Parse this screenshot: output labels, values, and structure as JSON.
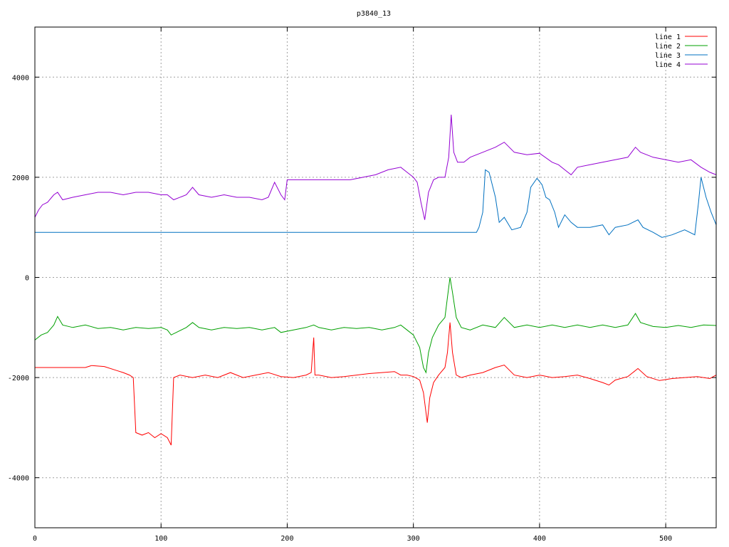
{
  "chart_data": {
    "type": "line",
    "title": "p3840_13",
    "xlabel": "",
    "ylabel": "",
    "xlim": [
      0,
      540
    ],
    "ylim": [
      -5000,
      5000
    ],
    "xticks": [
      0,
      100,
      200,
      300,
      400,
      500
    ],
    "yticks": [
      -4000,
      -2000,
      0,
      2000,
      4000
    ],
    "grid": true,
    "legend_position": "top-right",
    "series": [
      {
        "name": "line 1",
        "color": "#ff0000",
        "points": [
          [
            0,
            -1800
          ],
          [
            40,
            -1800
          ],
          [
            45,
            -1760
          ],
          [
            55,
            -1780
          ],
          [
            65,
            -1860
          ],
          [
            70,
            -1900
          ],
          [
            75,
            -1950
          ],
          [
            78,
            -2000
          ],
          [
            80,
            -3100
          ],
          [
            85,
            -3150
          ],
          [
            90,
            -3100
          ],
          [
            95,
            -3200
          ],
          [
            100,
            -3120
          ],
          [
            105,
            -3200
          ],
          [
            108,
            -3350
          ],
          [
            110,
            -2000
          ],
          [
            115,
            -1950
          ],
          [
            125,
            -2000
          ],
          [
            135,
            -1950
          ],
          [
            145,
            -2000
          ],
          [
            155,
            -1900
          ],
          [
            165,
            -2000
          ],
          [
            175,
            -1950
          ],
          [
            185,
            -1900
          ],
          [
            195,
            -1980
          ],
          [
            205,
            -2000
          ],
          [
            215,
            -1950
          ],
          [
            219,
            -1900
          ],
          [
            221,
            -1200
          ],
          [
            222,
            -1950
          ],
          [
            225,
            -1950
          ],
          [
            235,
            -2000
          ],
          [
            245,
            -1980
          ],
          [
            255,
            -1950
          ],
          [
            265,
            -1920
          ],
          [
            275,
            -1900
          ],
          [
            285,
            -1880
          ],
          [
            290,
            -1950
          ],
          [
            295,
            -1950
          ],
          [
            300,
            -1980
          ],
          [
            305,
            -2050
          ],
          [
            308,
            -2300
          ],
          [
            310,
            -2700
          ],
          [
            311,
            -2900
          ],
          [
            313,
            -2400
          ],
          [
            316,
            -2100
          ],
          [
            320,
            -1950
          ],
          [
            325,
            -1800
          ],
          [
            327,
            -1500
          ],
          [
            329,
            -900
          ],
          [
            331,
            -1500
          ],
          [
            334,
            -1950
          ],
          [
            338,
            -2000
          ],
          [
            345,
            -1950
          ],
          [
            355,
            -1900
          ],
          [
            365,
            -1800
          ],
          [
            372,
            -1750
          ],
          [
            380,
            -1950
          ],
          [
            390,
            -2000
          ],
          [
            400,
            -1950
          ],
          [
            410,
            -2000
          ],
          [
            420,
            -1980
          ],
          [
            430,
            -1950
          ],
          [
            440,
            -2020
          ],
          [
            450,
            -2100
          ],
          [
            455,
            -2150
          ],
          [
            460,
            -2050
          ],
          [
            470,
            -1980
          ],
          [
            478,
            -1820
          ],
          [
            485,
            -1980
          ],
          [
            495,
            -2060
          ],
          [
            505,
            -2020
          ],
          [
            515,
            -2000
          ],
          [
            525,
            -1980
          ],
          [
            535,
            -2020
          ],
          [
            540,
            -1950
          ]
        ]
      },
      {
        "name": "line 2",
        "color": "#00a000",
        "points": [
          [
            0,
            -1250
          ],
          [
            5,
            -1150
          ],
          [
            10,
            -1100
          ],
          [
            15,
            -950
          ],
          [
            18,
            -780
          ],
          [
            22,
            -950
          ],
          [
            30,
            -1000
          ],
          [
            40,
            -950
          ],
          [
            50,
            -1020
          ],
          [
            60,
            -1000
          ],
          [
            70,
            -1050
          ],
          [
            80,
            -1000
          ],
          [
            90,
            -1020
          ],
          [
            100,
            -1000
          ],
          [
            105,
            -1050
          ],
          [
            108,
            -1150
          ],
          [
            112,
            -1100
          ],
          [
            120,
            -1000
          ],
          [
            125,
            -900
          ],
          [
            130,
            -1000
          ],
          [
            140,
            -1050
          ],
          [
            150,
            -1000
          ],
          [
            160,
            -1020
          ],
          [
            170,
            -1000
          ],
          [
            180,
            -1050
          ],
          [
            190,
            -1000
          ],
          [
            195,
            -1100
          ],
          [
            205,
            -1050
          ],
          [
            215,
            -1000
          ],
          [
            221,
            -950
          ],
          [
            225,
            -1000
          ],
          [
            235,
            -1050
          ],
          [
            245,
            -1000
          ],
          [
            255,
            -1020
          ],
          [
            265,
            -1000
          ],
          [
            275,
            -1050
          ],
          [
            285,
            -1000
          ],
          [
            290,
            -950
          ],
          [
            295,
            -1050
          ],
          [
            300,
            -1150
          ],
          [
            305,
            -1400
          ],
          [
            308,
            -1800
          ],
          [
            310,
            -1900
          ],
          [
            312,
            -1500
          ],
          [
            315,
            -1200
          ],
          [
            320,
            -950
          ],
          [
            325,
            -800
          ],
          [
            327,
            -400
          ],
          [
            329,
            0
          ],
          [
            331,
            -300
          ],
          [
            334,
            -800
          ],
          [
            338,
            -1000
          ],
          [
            345,
            -1050
          ],
          [
            355,
            -950
          ],
          [
            365,
            -1000
          ],
          [
            372,
            -800
          ],
          [
            380,
            -1000
          ],
          [
            390,
            -950
          ],
          [
            400,
            -1000
          ],
          [
            410,
            -950
          ],
          [
            420,
            -1000
          ],
          [
            430,
            -950
          ],
          [
            440,
            -1000
          ],
          [
            450,
            -950
          ],
          [
            460,
            -1000
          ],
          [
            470,
            -950
          ],
          [
            476,
            -720
          ],
          [
            480,
            -900
          ],
          [
            490,
            -980
          ],
          [
            500,
            -1000
          ],
          [
            510,
            -960
          ],
          [
            520,
            -1000
          ],
          [
            530,
            -950
          ],
          [
            540,
            -960
          ]
        ]
      },
      {
        "name": "line 3",
        "color": "#0070c0",
        "points": [
          [
            0,
            900
          ],
          [
            350,
            900
          ],
          [
            352,
            1000
          ],
          [
            355,
            1300
          ],
          [
            357,
            2150
          ],
          [
            360,
            2100
          ],
          [
            365,
            1600
          ],
          [
            368,
            1100
          ],
          [
            372,
            1200
          ],
          [
            378,
            950
          ],
          [
            385,
            1000
          ],
          [
            390,
            1300
          ],
          [
            393,
            1800
          ],
          [
            398,
            1980
          ],
          [
            402,
            1850
          ],
          [
            405,
            1600
          ],
          [
            408,
            1550
          ],
          [
            412,
            1300
          ],
          [
            415,
            1000
          ],
          [
            420,
            1250
          ],
          [
            425,
            1100
          ],
          [
            430,
            1000
          ],
          [
            440,
            1000
          ],
          [
            450,
            1050
          ],
          [
            455,
            850
          ],
          [
            460,
            1000
          ],
          [
            470,
            1050
          ],
          [
            478,
            1150
          ],
          [
            482,
            1000
          ],
          [
            490,
            900
          ],
          [
            497,
            800
          ],
          [
            505,
            850
          ],
          [
            515,
            950
          ],
          [
            523,
            850
          ],
          [
            526,
            1500
          ],
          [
            528,
            2000
          ],
          [
            532,
            1600
          ],
          [
            536,
            1300
          ],
          [
            540,
            1050
          ]
        ]
      },
      {
        "name": "line 4",
        "color": "#9400d3",
        "points": [
          [
            0,
            1200
          ],
          [
            3,
            1350
          ],
          [
            6,
            1450
          ],
          [
            10,
            1500
          ],
          [
            15,
            1650
          ],
          [
            18,
            1700
          ],
          [
            22,
            1550
          ],
          [
            30,
            1600
          ],
          [
            40,
            1650
          ],
          [
            50,
            1700
          ],
          [
            60,
            1700
          ],
          [
            70,
            1650
          ],
          [
            80,
            1700
          ],
          [
            90,
            1700
          ],
          [
            100,
            1650
          ],
          [
            105,
            1650
          ],
          [
            110,
            1550
          ],
          [
            120,
            1650
          ],
          [
            125,
            1800
          ],
          [
            130,
            1650
          ],
          [
            140,
            1600
          ],
          [
            150,
            1650
          ],
          [
            160,
            1600
          ],
          [
            170,
            1600
          ],
          [
            180,
            1550
          ],
          [
            185,
            1600
          ],
          [
            190,
            1900
          ],
          [
            195,
            1650
          ],
          [
            198,
            1550
          ],
          [
            200,
            1950
          ],
          [
            210,
            1950
          ],
          [
            220,
            1950
          ],
          [
            230,
            1950
          ],
          [
            240,
            1950
          ],
          [
            250,
            1950
          ],
          [
            260,
            2000
          ],
          [
            270,
            2050
          ],
          [
            280,
            2150
          ],
          [
            290,
            2200
          ],
          [
            295,
            2100
          ],
          [
            300,
            2000
          ],
          [
            303,
            1900
          ],
          [
            306,
            1500
          ],
          [
            309,
            1150
          ],
          [
            312,
            1700
          ],
          [
            316,
            1950
          ],
          [
            320,
            2000
          ],
          [
            325,
            2000
          ],
          [
            328,
            2400
          ],
          [
            330,
            3250
          ],
          [
            332,
            2500
          ],
          [
            335,
            2300
          ],
          [
            340,
            2300
          ],
          [
            345,
            2400
          ],
          [
            355,
            2500
          ],
          [
            365,
            2600
          ],
          [
            372,
            2700
          ],
          [
            380,
            2500
          ],
          [
            390,
            2450
          ],
          [
            400,
            2480
          ],
          [
            410,
            2300
          ],
          [
            415,
            2250
          ],
          [
            420,
            2150
          ],
          [
            425,
            2050
          ],
          [
            430,
            2200
          ],
          [
            440,
            2250
          ],
          [
            450,
            2300
          ],
          [
            460,
            2350
          ],
          [
            470,
            2400
          ],
          [
            476,
            2600
          ],
          [
            480,
            2500
          ],
          [
            490,
            2400
          ],
          [
            500,
            2350
          ],
          [
            510,
            2300
          ],
          [
            520,
            2350
          ],
          [
            528,
            2200
          ],
          [
            535,
            2100
          ],
          [
            540,
            2050
          ]
        ]
      }
    ]
  }
}
